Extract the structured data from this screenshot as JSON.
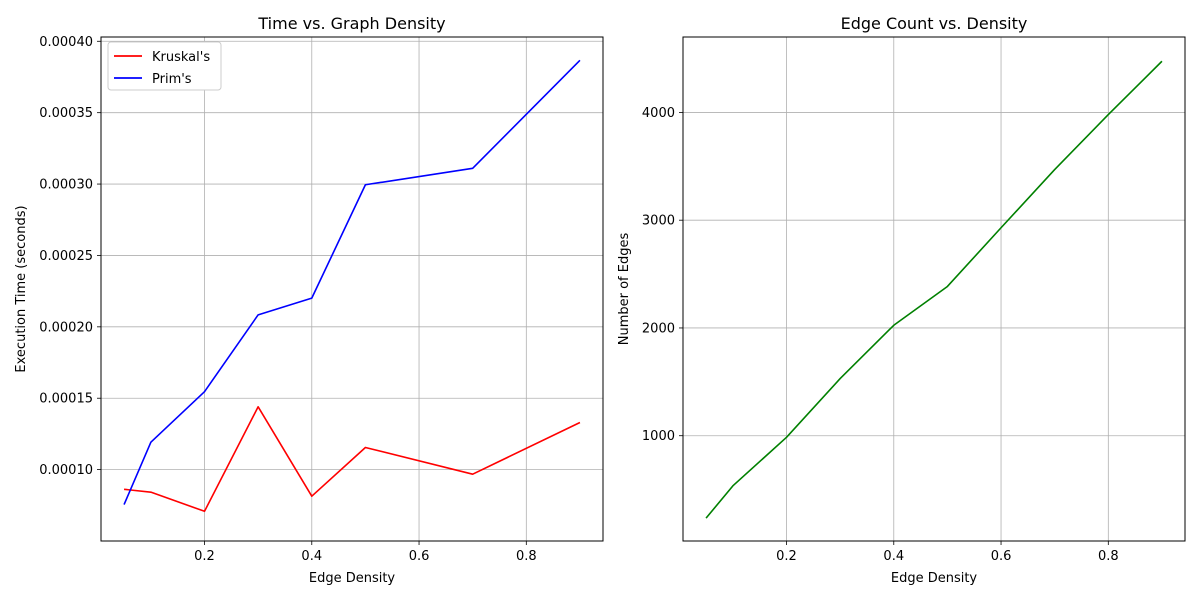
{
  "colors": {
    "kruskal": "#ff0000",
    "prim": "#0000ff",
    "edges": "#008000",
    "grid": "#b0b0b0",
    "axis": "#000000",
    "legend_border": "#cccccc"
  },
  "chart_data": [
    {
      "type": "line",
      "title": "Time vs. Graph Density",
      "xlabel": "Edge Density",
      "ylabel": "Execution Time (seconds)",
      "xlim": [
        0.007,
        0.943
      ],
      "ylim": [
        5e-05,
        0.000403
      ],
      "x_ticks": [
        0.2,
        0.4,
        0.6,
        0.8
      ],
      "x_tick_labels": [
        "0.2",
        "0.4",
        "0.6",
        "0.8"
      ],
      "y_ticks": [
        0.0001,
        0.00015,
        0.0002,
        0.00025,
        0.0003,
        0.00035,
        0.0004
      ],
      "y_tick_labels": [
        "0.00010",
        "0.00015",
        "0.00020",
        "0.00025",
        "0.00030",
        "0.00035",
        "0.00040"
      ],
      "grid": true,
      "legend": "top-left",
      "x": [
        0.05,
        0.1,
        0.2,
        0.3,
        0.4,
        0.5,
        0.7,
        0.9
      ],
      "series": [
        {
          "name": "Kruskal's",
          "color_key": "kruskal",
          "values": [
            8.62e-05,
            8.42e-05,
            7.08e-05,
            0.000144,
            8.14e-05,
            0.0001155,
            9.68e-05,
            0.000133
          ]
        },
        {
          "name": "Prim's",
          "color_key": "prim",
          "values": [
            7.55e-05,
            0.0001192,
            0.0001546,
            0.0002084,
            0.0002201,
            0.0002995,
            0.000311,
            0.0003867
          ]
        }
      ]
    },
    {
      "type": "line",
      "title": "Edge Count vs. Density",
      "xlabel": "Edge Density",
      "ylabel": "Number of Edges",
      "xlim": [
        0.007,
        0.943
      ],
      "ylim": [
        23,
        4700
      ],
      "x_ticks": [
        0.2,
        0.4,
        0.6,
        0.8
      ],
      "x_tick_labels": [
        "0.2",
        "0.4",
        "0.6",
        "0.8"
      ],
      "y_ticks": [
        1000,
        2000,
        3000,
        4000
      ],
      "y_tick_labels": [
        "1000",
        "2000",
        "3000",
        "4000"
      ],
      "grid": true,
      "x": [
        0.05,
        0.1,
        0.2,
        0.3,
        0.4,
        0.5,
        0.6,
        0.7,
        0.8,
        0.9
      ],
      "series": [
        {
          "color_key": "edges",
          "values": [
            235,
            535,
            985,
            1530,
            2025,
            2385,
            2930,
            3470,
            3980,
            4475
          ]
        }
      ]
    }
  ]
}
